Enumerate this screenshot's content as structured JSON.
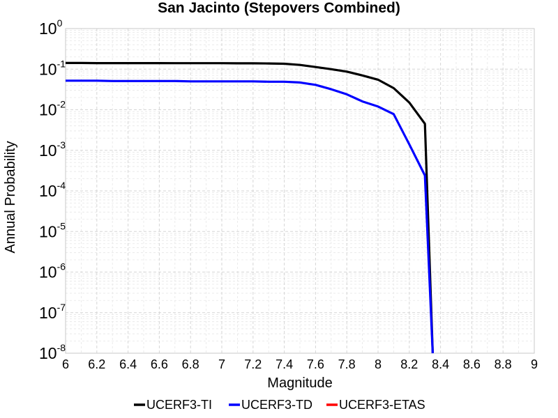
{
  "chart_data": {
    "type": "line",
    "title": "San Jacinto (Stepovers Combined)",
    "xlabel": "Magnitude",
    "ylabel": "Annual Probability",
    "xlim": [
      6,
      9
    ],
    "ylim": [
      1e-08,
      1
    ],
    "yscale": "log",
    "grid": true,
    "legend_position": "bottom",
    "x_ticks": [
      "6",
      "6.2",
      "6.4",
      "6.6",
      "6.8",
      "7",
      "7.2",
      "7.4",
      "7.6",
      "7.8",
      "8",
      "8.2",
      "8.4",
      "8.6",
      "8.8",
      "9"
    ],
    "y_ticks": [
      {
        "base": "10",
        "exp": "0"
      },
      {
        "base": "10",
        "exp": "-1"
      },
      {
        "base": "10",
        "exp": "-2"
      },
      {
        "base": "10",
        "exp": "-3"
      },
      {
        "base": "10",
        "exp": "-4"
      },
      {
        "base": "10",
        "exp": "-5"
      },
      {
        "base": "10",
        "exp": "-6"
      },
      {
        "base": "10",
        "exp": "-7"
      },
      {
        "base": "10",
        "exp": "-8"
      }
    ],
    "series": [
      {
        "name": "UCERF3-TI",
        "color": "#000000",
        "x": [
          6.0,
          6.1,
          6.2,
          6.3,
          6.4,
          6.5,
          6.6,
          6.7,
          6.8,
          6.9,
          7.0,
          7.1,
          7.2,
          7.3,
          7.4,
          7.5,
          7.6,
          7.7,
          7.8,
          7.9,
          8.0,
          8.1,
          8.2,
          8.3,
          8.35
        ],
        "y": [
          0.142,
          0.142,
          0.141,
          0.141,
          0.141,
          0.141,
          0.141,
          0.14,
          0.14,
          0.14,
          0.14,
          0.139,
          0.139,
          0.138,
          0.136,
          0.127,
          0.113,
          0.1,
          0.087,
          0.07,
          0.055,
          0.034,
          0.015,
          0.0045,
          5e-09
        ]
      },
      {
        "name": "UCERF3-TD",
        "color": "#0000ff",
        "x": [
          6.0,
          6.1,
          6.2,
          6.3,
          6.4,
          6.5,
          6.6,
          6.7,
          6.8,
          6.9,
          7.0,
          7.1,
          7.2,
          7.3,
          7.4,
          7.5,
          7.6,
          7.7,
          7.8,
          7.9,
          8.0,
          8.1,
          8.2,
          8.3,
          8.35
        ],
        "y": [
          0.052,
          0.052,
          0.052,
          0.051,
          0.051,
          0.051,
          0.051,
          0.051,
          0.05,
          0.05,
          0.05,
          0.05,
          0.05,
          0.049,
          0.049,
          0.047,
          0.041,
          0.032,
          0.024,
          0.016,
          0.012,
          0.0078,
          0.0014,
          0.00024,
          5e-09
        ]
      },
      {
        "name": "UCERF3-ETAS",
        "color": "#ff0000",
        "x": [],
        "y": []
      }
    ]
  }
}
